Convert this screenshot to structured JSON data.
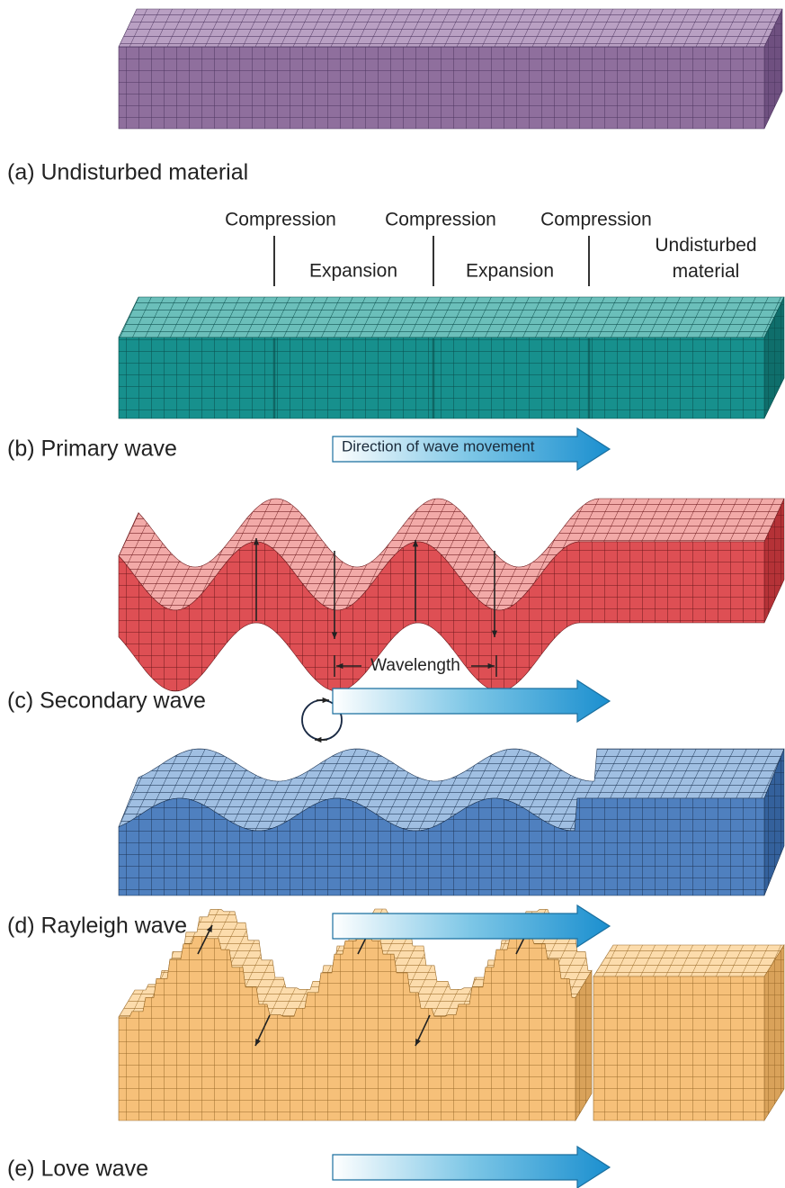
{
  "panels": [
    {
      "label": "(a) Undisturbed material"
    },
    {
      "label": "(b) Primary wave",
      "compression": [
        "Compression",
        "Compression",
        "Compression"
      ],
      "expansion": [
        "Expansion",
        "Expansion"
      ],
      "undisturbed": "Undisturbed material",
      "arrow": "Direction of wave movement"
    },
    {
      "label": "(c) Secondary wave",
      "wavelength": "Wavelength"
    },
    {
      "label": "(d) Rayleigh wave"
    },
    {
      "label": "(e) Love wave"
    }
  ]
}
